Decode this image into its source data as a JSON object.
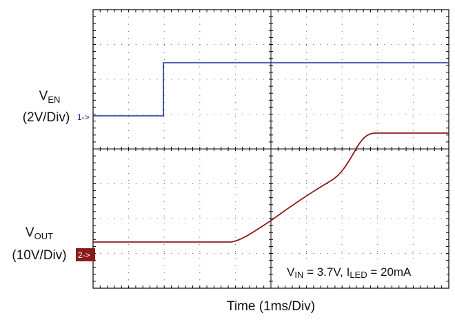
{
  "labels": {
    "ven": {
      "main": "V",
      "sub": "EN",
      "scale": "(2V/Div)"
    },
    "ch1_marker": "1->",
    "vout": {
      "main": "V",
      "sub": "OUT",
      "scale": "(10V/Div)"
    },
    "ch2_marker": "2->",
    "conditions": {
      "v": "V",
      "v_sub": "IN",
      "v_text": " = 3.7V, I",
      "i_sub": "LED",
      "i_text": " = 20mA"
    },
    "x_label": "Time (1ms/Div)"
  }
}
